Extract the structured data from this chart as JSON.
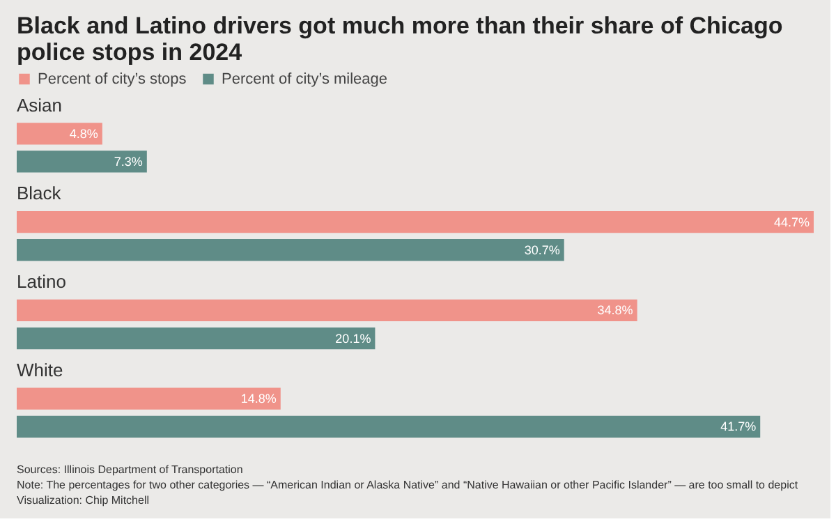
{
  "chart_data": {
    "type": "bar",
    "orientation": "horizontal",
    "title": "Black and Latino drivers got much more than their share of Chicago police stops in 2024",
    "categories": [
      "Asian",
      "Black",
      "Latino",
      "White"
    ],
    "series": [
      {
        "name": "Percent of city’s stops",
        "color": "#f0938a",
        "values": [
          4.8,
          44.7,
          34.8,
          14.8
        ],
        "value_labels": [
          "4.8%",
          "44.7%",
          "34.8%",
          "14.8%"
        ]
      },
      {
        "name": "Percent of city’s mileage",
        "color": "#5f8c87",
        "values": [
          7.3,
          30.7,
          20.1,
          41.7
        ],
        "value_labels": [
          "7.3%",
          "30.7%",
          "20.1%",
          "41.7%"
        ]
      }
    ],
    "legend": "top left",
    "tick_labels": false,
    "annotations": [
      "Sources: Illinois Department of Transportation",
      "Note: The percentages for two other categories — “American Indian or Alaska Native” and “Native Hawaiian or other Pacific Islander” — are too small to depict",
      "Visualization: Chip Mitchell"
    ]
  }
}
